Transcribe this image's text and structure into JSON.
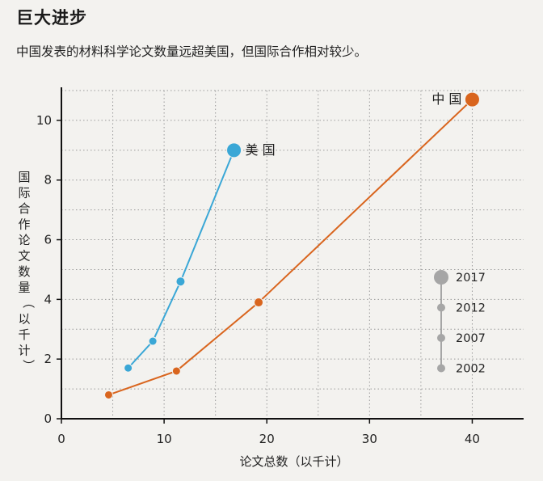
{
  "header": {
    "title": "巨大进步",
    "subtitle": "中国发表的材料科学论文数量远超美国，但国际合作相对较少。"
  },
  "colors": {
    "usa": "#3aa7d6",
    "china": "#d9651e",
    "legend": "#a6a6a6",
    "background": "#f3f2ef"
  },
  "chart_data": {
    "type": "scatter",
    "xlabel": "论文总数（以千计）",
    "ylabel": "国际合作论文数量（以千计）",
    "xlim": [
      0,
      45
    ],
    "ylim": [
      0,
      11
    ],
    "xticks": [
      0,
      10,
      20,
      30,
      40
    ],
    "yticks": [
      0,
      2,
      4,
      6,
      8,
      10
    ],
    "grid": true,
    "series": [
      {
        "name": "美 国",
        "color": "#3aa7d6",
        "points": [
          {
            "year": 2002,
            "x": 6.5,
            "y": 1.7
          },
          {
            "year": 2007,
            "x": 8.9,
            "y": 2.6
          },
          {
            "year": 2012,
            "x": 11.6,
            "y": 4.6
          },
          {
            "year": 2017,
            "x": 16.8,
            "y": 9.0
          }
        ]
      },
      {
        "name": "中 国",
        "color": "#d9651e",
        "points": [
          {
            "year": 2002,
            "x": 4.6,
            "y": 0.8
          },
          {
            "year": 2007,
            "x": 11.2,
            "y": 1.6
          },
          {
            "year": 2012,
            "x": 19.2,
            "y": 3.9
          },
          {
            "year": 2017,
            "x": 40.0,
            "y": 10.7
          }
        ]
      }
    ],
    "legend": {
      "placement": "bottom-right",
      "title": "",
      "entries": [
        "2017",
        "2012",
        "2007",
        "2002"
      ]
    }
  }
}
